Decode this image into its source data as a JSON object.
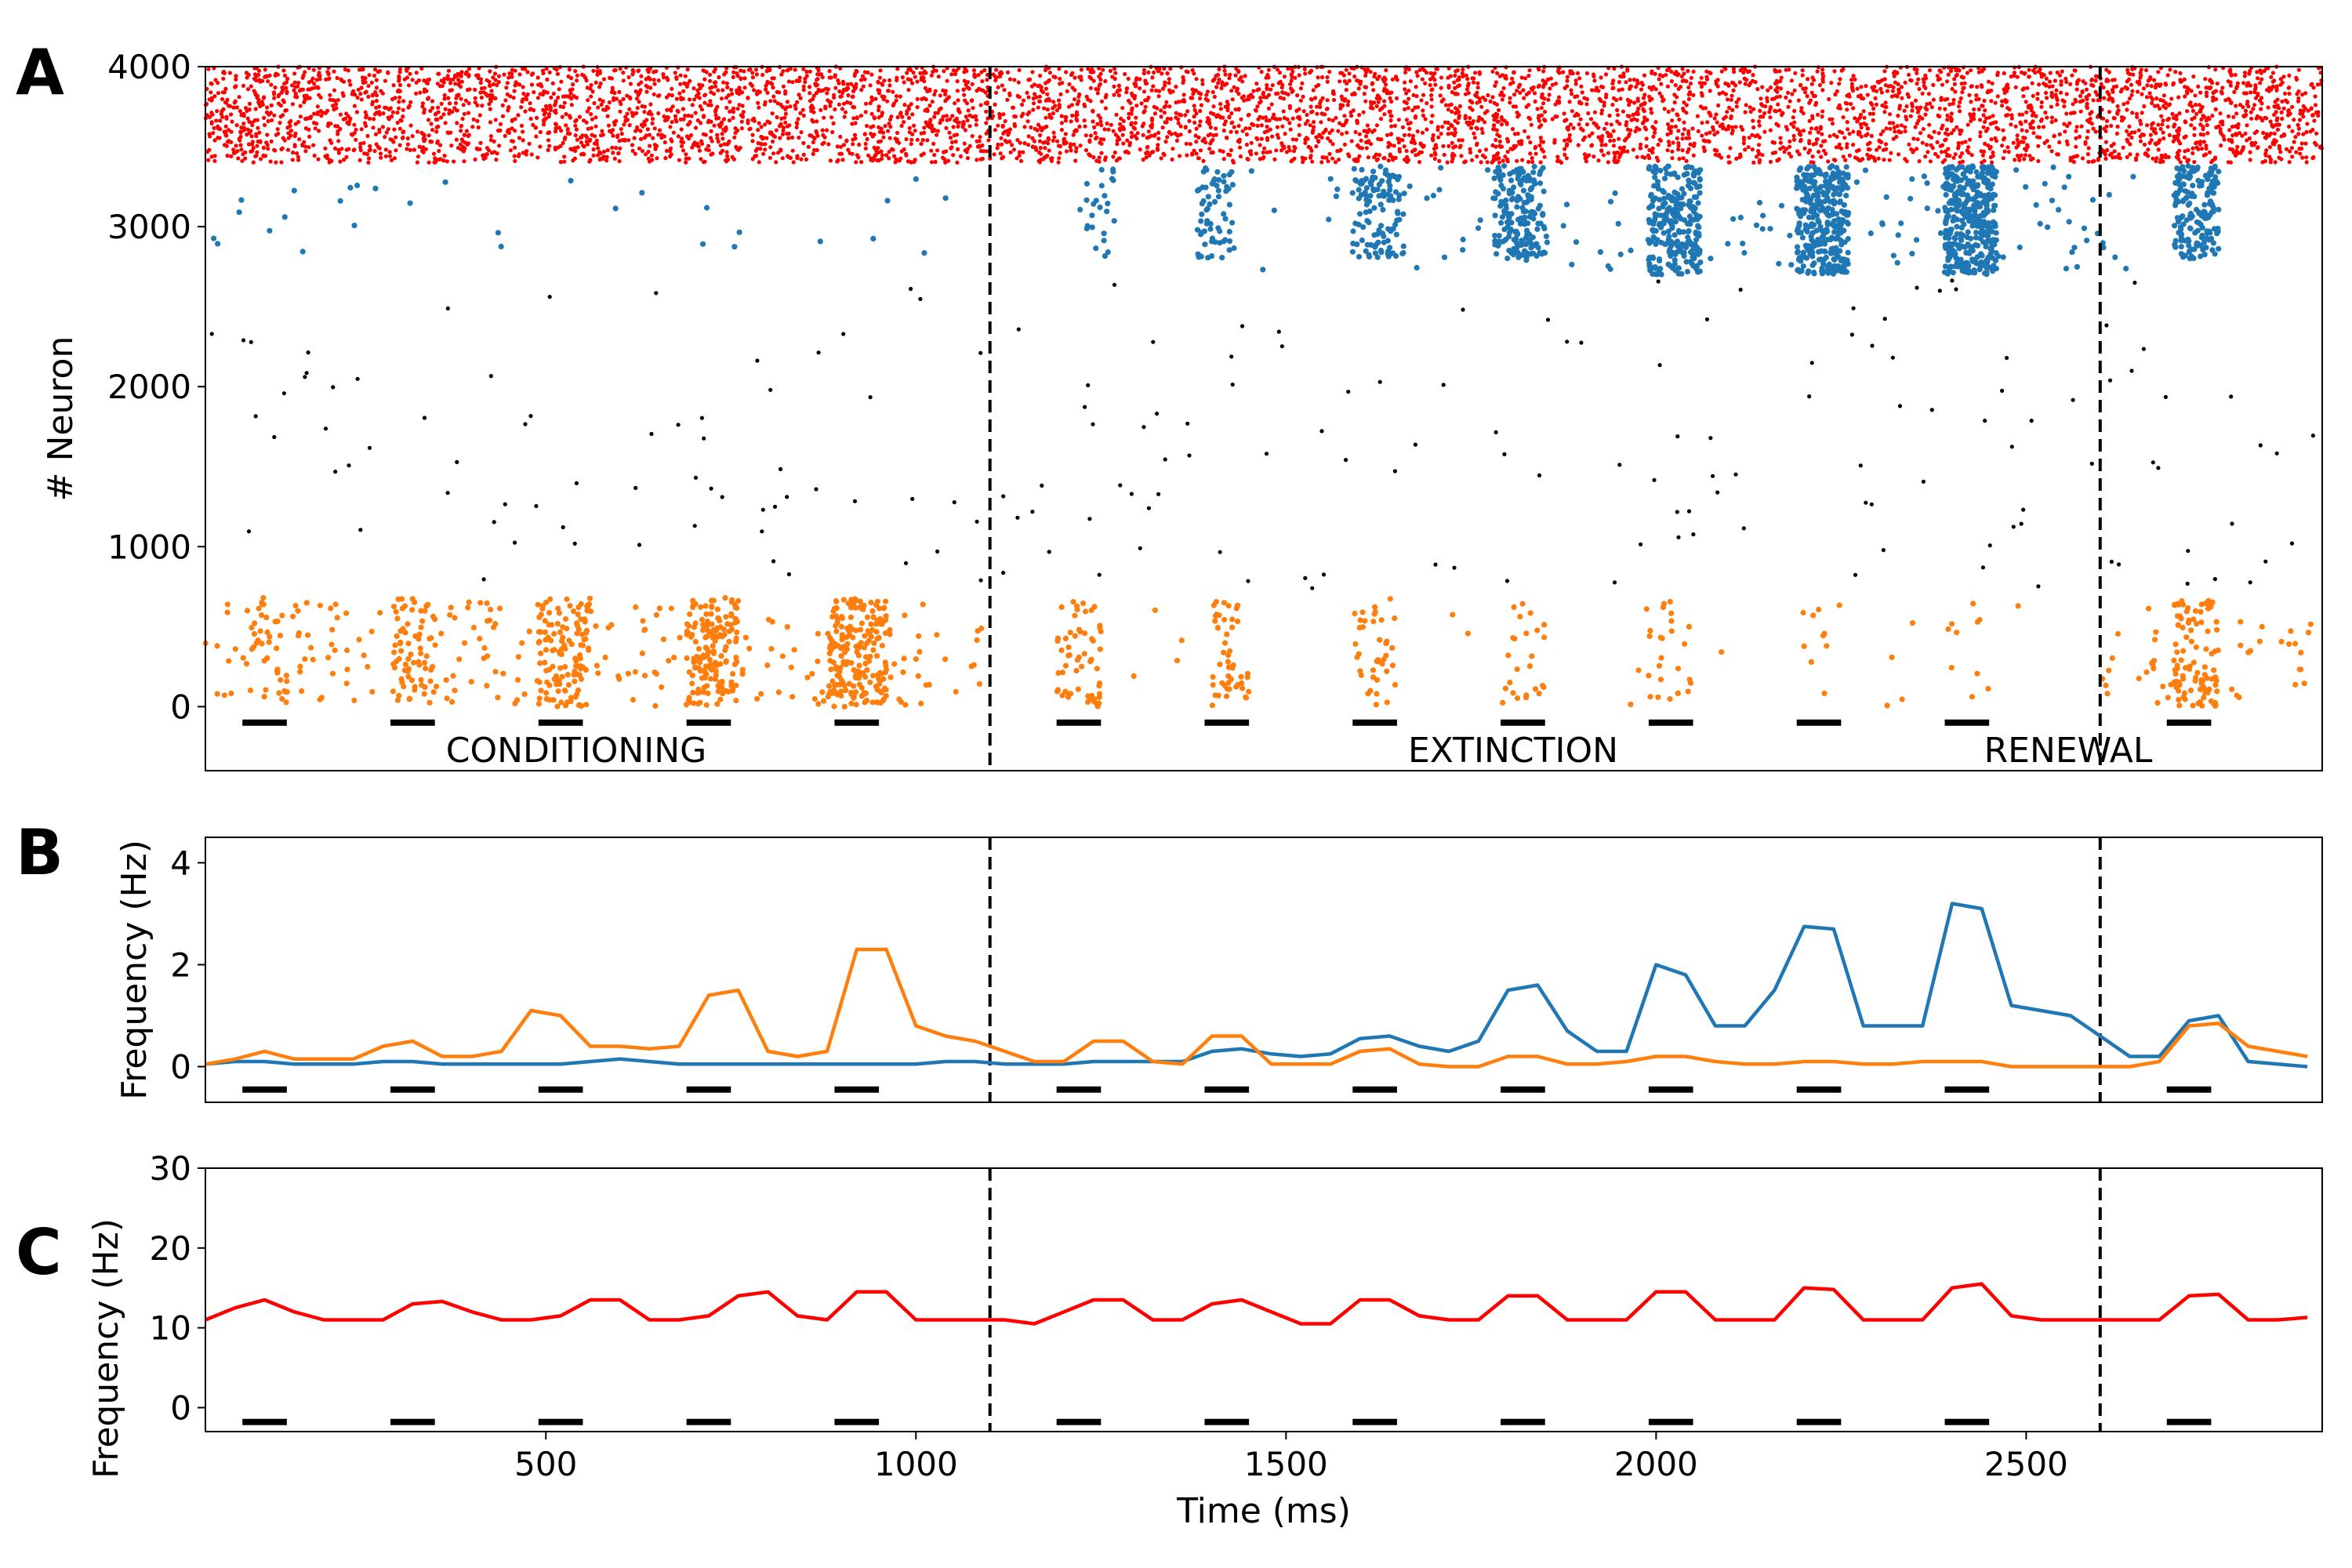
{
  "figure": {
    "panel_labels": [
      "A",
      "B",
      "C"
    ],
    "phase_labels": [
      "CONDITIONING",
      "EXTINCTION",
      "RENEWAL"
    ],
    "shared_xlabel": "Time (ms)"
  },
  "colors": {
    "excitatory": "#ff0000",
    "cs_plus": "#1f77b4",
    "cs_minus": "#ff7f0e",
    "other": "#000000",
    "divider": "#000000",
    "stimulus_bar": "#000000"
  },
  "chart_data": [
    {
      "panel": "A",
      "type": "scatter",
      "title": "",
      "xlabel": "",
      "ylabel": "# Neuron",
      "xlim": [
        40,
        2900
      ],
      "ylim": [
        -400,
        4000
      ],
      "yticks": [
        0,
        1000,
        2000,
        3000,
        4000
      ],
      "xticks": [],
      "phase_dividers": [
        1100,
        2600
      ],
      "stimulus_windows": [
        [
          90,
          150
        ],
        [
          290,
          350
        ],
        [
          490,
          550
        ],
        [
          690,
          750
        ],
        [
          890,
          950
        ],
        [
          1190,
          1250
        ],
        [
          1390,
          1450
        ],
        [
          1590,
          1650
        ],
        [
          1790,
          1850
        ],
        [
          1990,
          2050
        ],
        [
          2190,
          2250
        ],
        [
          2390,
          2450
        ],
        [
          2690,
          2750
        ]
      ],
      "stimulus_bar_y": -100,
      "series": [
        {
          "name": "",
          "color": "#ff0000",
          "population": "3400-4000",
          "description_density": "dense uniform spiking throughout"
        },
        {
          "name": "",
          "color": "#1f77b4",
          "population": "2700-3400",
          "bursts_ms": [
            [
              1230,
              1270,
              3
            ],
            [
              1380,
              1430,
              8
            ],
            [
              1590,
              1660,
              14
            ],
            [
              1780,
              1850,
              22
            ],
            [
              1990,
              2060,
              30
            ],
            [
              2190,
              2260,
              40
            ],
            [
              2390,
              2460,
              45
            ],
            [
              2700,
              2760,
              22
            ]
          ]
        },
        {
          "name": "",
          "color": "#ff7f0e",
          "population": "0-680",
          "bursts_ms": [
            [
              100,
              150,
              6
            ],
            [
              290,
              350,
              12
            ],
            [
              490,
              560,
              22
            ],
            [
              690,
              760,
              30
            ],
            [
              880,
              960,
              38
            ],
            [
              1190,
              1250,
              12
            ],
            [
              1400,
              1450,
              10
            ],
            [
              1590,
              1650,
              8
            ],
            [
              1790,
              1850,
              5
            ],
            [
              1990,
              2050,
              5
            ],
            [
              2190,
              2250,
              2
            ],
            [
              2390,
              2450,
              2
            ],
            [
              2700,
              2760,
              18
            ]
          ]
        },
        {
          "name": "",
          "color": "#000000",
          "population": "700-2700",
          "description_density": "sparse background spikes"
        }
      ]
    },
    {
      "panel": "B",
      "type": "line",
      "title": "",
      "xlabel": "",
      "ylabel": "Frequency (Hz)",
      "xlim": [
        40,
        2900
      ],
      "ylim": [
        -0.7,
        4.5
      ],
      "yticks": [
        0,
        2,
        4
      ],
      "xticks": [],
      "phase_dividers": [
        1100,
        2600
      ],
      "stimulus_bar_y": -0.45,
      "x": [
        40,
        80,
        120,
        160,
        200,
        240,
        280,
        320,
        360,
        400,
        440,
        480,
        520,
        560,
        600,
        640,
        680,
        720,
        760,
        800,
        840,
        880,
        920,
        960,
        1000,
        1040,
        1080,
        1120,
        1160,
        1200,
        1240,
        1280,
        1320,
        1360,
        1400,
        1440,
        1480,
        1520,
        1560,
        1600,
        1640,
        1680,
        1720,
        1760,
        1800,
        1840,
        1880,
        1920,
        1960,
        2000,
        2040,
        2080,
        2120,
        2160,
        2200,
        2240,
        2280,
        2320,
        2360,
        2400,
        2440,
        2480,
        2520,
        2560,
        2600,
        2640,
        2680,
        2720,
        2760,
        2800,
        2840,
        2880
      ],
      "series": [
        {
          "name": "",
          "color": "#1f77b4",
          "values": [
            0.05,
            0.1,
            0.1,
            0.05,
            0.05,
            0.05,
            0.1,
            0.1,
            0.05,
            0.05,
            0.05,
            0.05,
            0.05,
            0.1,
            0.15,
            0.1,
            0.05,
            0.05,
            0.05,
            0.05,
            0.05,
            0.05,
            0.05,
            0.05,
            0.05,
            0.1,
            0.1,
            0.05,
            0.05,
            0.05,
            0.1,
            0.1,
            0.1,
            0.1,
            0.3,
            0.35,
            0.25,
            0.2,
            0.25,
            0.55,
            0.6,
            0.4,
            0.3,
            0.5,
            1.5,
            1.6,
            0.7,
            0.3,
            0.3,
            2.0,
            1.8,
            0.8,
            0.8,
            1.5,
            2.75,
            2.7,
            0.8,
            0.8,
            0.8,
            3.2,
            3.1,
            1.2,
            1.1,
            1.0,
            0.6,
            0.2,
            0.2,
            0.9,
            1.0,
            0.1,
            0.05,
            0.0
          ]
        },
        {
          "name": "",
          "color": "#ff7f0e",
          "values": [
            0.05,
            0.15,
            0.3,
            0.15,
            0.15,
            0.15,
            0.4,
            0.5,
            0.2,
            0.2,
            0.3,
            1.1,
            1.0,
            0.4,
            0.4,
            0.35,
            0.4,
            1.4,
            1.5,
            0.3,
            0.2,
            0.3,
            2.3,
            2.3,
            0.8,
            0.6,
            0.5,
            0.3,
            0.1,
            0.1,
            0.5,
            0.5,
            0.1,
            0.05,
            0.6,
            0.6,
            0.05,
            0.05,
            0.05,
            0.3,
            0.35,
            0.05,
            0.0,
            0.0,
            0.2,
            0.2,
            0.05,
            0.05,
            0.1,
            0.2,
            0.2,
            0.1,
            0.05,
            0.05,
            0.1,
            0.1,
            0.05,
            0.05,
            0.1,
            0.1,
            0.1,
            0.0,
            0.0,
            0.0,
            0.0,
            0.0,
            0.1,
            0.8,
            0.85,
            0.4,
            0.3,
            0.2
          ]
        }
      ]
    },
    {
      "panel": "C",
      "type": "line",
      "title": "",
      "xlabel": "Time (ms)",
      "ylabel": "Frequency (Hz)",
      "xlim": [
        40,
        2900
      ],
      "ylim": [
        -3,
        30
      ],
      "yticks": [
        0,
        10,
        20,
        30
      ],
      "xticks": [
        500,
        1000,
        1500,
        2000,
        2500
      ],
      "phase_dividers": [
        1100,
        2600
      ],
      "stimulus_bar_y": -1.8,
      "x": [
        40,
        80,
        120,
        160,
        200,
        240,
        280,
        320,
        360,
        400,
        440,
        480,
        520,
        560,
        600,
        640,
        680,
        720,
        760,
        800,
        840,
        880,
        920,
        960,
        1000,
        1040,
        1080,
        1120,
        1160,
        1200,
        1240,
        1280,
        1320,
        1360,
        1400,
        1440,
        1480,
        1520,
        1560,
        1600,
        1640,
        1680,
        1720,
        1760,
        1800,
        1840,
        1880,
        1920,
        1960,
        2000,
        2040,
        2080,
        2120,
        2160,
        2200,
        2240,
        2280,
        2320,
        2360,
        2400,
        2440,
        2480,
        2520,
        2560,
        2600,
        2640,
        2680,
        2720,
        2760,
        2800,
        2840,
        2880
      ],
      "series": [
        {
          "name": "",
          "color": "#ff0000",
          "values": [
            11,
            12.5,
            13.5,
            12,
            11,
            11,
            11,
            13,
            13.3,
            12,
            11,
            11,
            11.5,
            13.5,
            13.5,
            11,
            11,
            11.5,
            14,
            14.5,
            11.5,
            11,
            14.5,
            14.5,
            11,
            11,
            11,
            11,
            10.5,
            12,
            13.5,
            13.5,
            11,
            11,
            13,
            13.5,
            12,
            10.5,
            10.5,
            13.5,
            13.5,
            11.5,
            11,
            11,
            14,
            14,
            11,
            11,
            11,
            14.5,
            14.5,
            11,
            11,
            11,
            15,
            14.8,
            11,
            11,
            11,
            15,
            15.5,
            11.5,
            11,
            11,
            11,
            11,
            11,
            14,
            14.2,
            11,
            11,
            11.3
          ]
        }
      ]
    }
  ]
}
